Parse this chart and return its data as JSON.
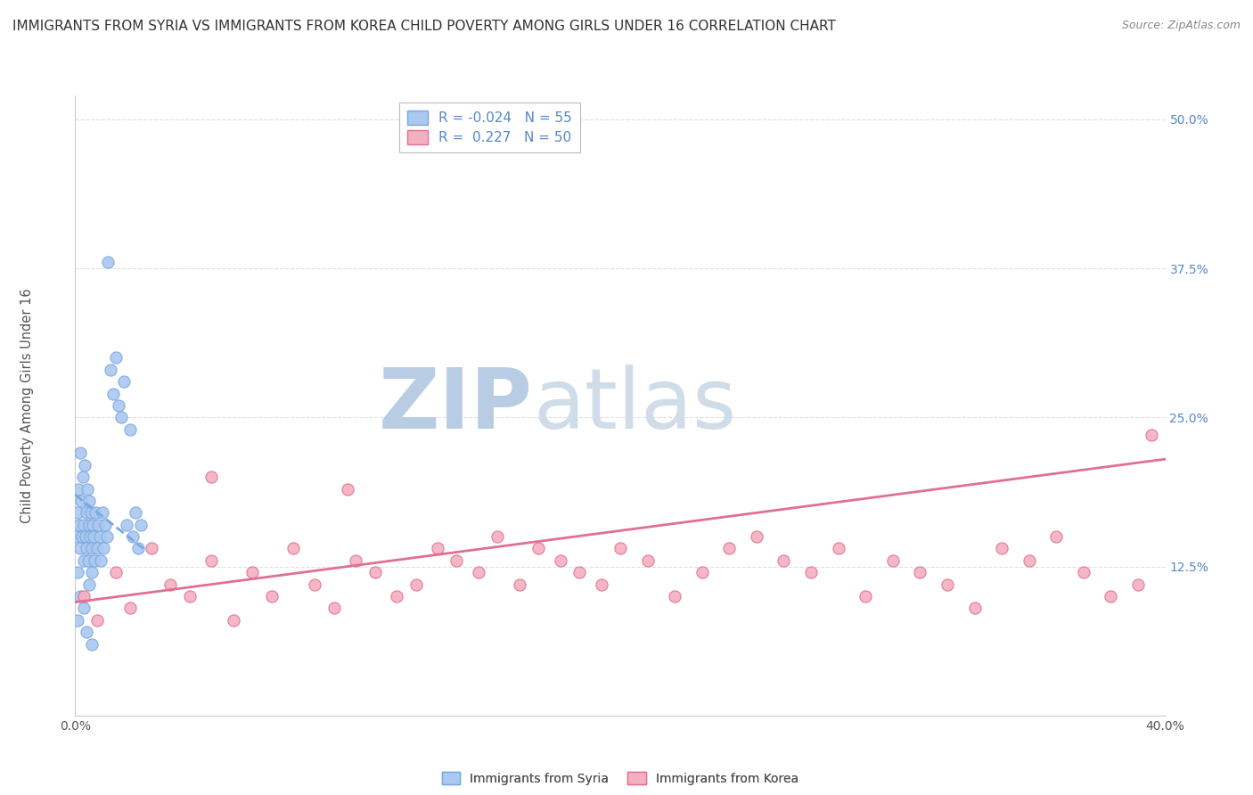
{
  "title": "IMMIGRANTS FROM SYRIA VS IMMIGRANTS FROM KOREA CHILD POVERTY AMONG GIRLS UNDER 16 CORRELATION CHART",
  "source": "Source: ZipAtlas.com",
  "ylabel": "Child Poverty Among Girls Under 16",
  "xlim": [
    0.0,
    40.0
  ],
  "ylim": [
    0.0,
    0.52
  ],
  "x_ticks": [
    0,
    10,
    20,
    30,
    40
  ],
  "x_tick_labels": [
    "0.0%",
    "",
    "",
    "",
    "40.0%"
  ],
  "y_ticks": [
    0.0,
    0.125,
    0.25,
    0.375,
    0.5
  ],
  "y_tick_labels": [
    "",
    "12.5%",
    "25.0%",
    "37.5%",
    "50.0%"
  ],
  "series": [
    {
      "name": "Immigrants from Syria",
      "color": "#aac8f0",
      "edge_color": "#78a8e0",
      "R": -0.024,
      "N": 55,
      "trend_color": "#78a8e0",
      "trend_style": "dashed",
      "trend_x_start": 0.0,
      "trend_x_end": 2.5,
      "trend_y_start": 0.185,
      "trend_y_end": 0.14,
      "x": [
        0.05,
        0.08,
        0.1,
        0.12,
        0.15,
        0.18,
        0.2,
        0.22,
        0.25,
        0.28,
        0.3,
        0.33,
        0.35,
        0.38,
        0.4,
        0.42,
        0.45,
        0.48,
        0.5,
        0.52,
        0.55,
        0.58,
        0.6,
        0.62,
        0.65,
        0.68,
        0.7,
        0.75,
        0.8,
        0.85,
        0.9,
        0.95,
        1.0,
        1.05,
        1.1,
        1.15,
        1.2,
        1.3,
        1.4,
        1.5,
        1.6,
        1.7,
        1.8,
        1.9,
        2.0,
        2.1,
        2.2,
        2.3,
        2.4,
        0.1,
        0.2,
        0.3,
        0.4,
        0.5,
        0.6
      ],
      "y": [
        0.15,
        0.17,
        0.12,
        0.19,
        0.16,
        0.22,
        0.14,
        0.18,
        0.15,
        0.2,
        0.13,
        0.16,
        0.21,
        0.15,
        0.17,
        0.14,
        0.19,
        0.13,
        0.16,
        0.18,
        0.15,
        0.17,
        0.14,
        0.12,
        0.16,
        0.15,
        0.13,
        0.17,
        0.14,
        0.16,
        0.15,
        0.13,
        0.17,
        0.14,
        0.16,
        0.15,
        0.38,
        0.29,
        0.27,
        0.3,
        0.26,
        0.25,
        0.28,
        0.16,
        0.24,
        0.15,
        0.17,
        0.14,
        0.16,
        0.08,
        0.1,
        0.09,
        0.07,
        0.11,
        0.06
      ]
    },
    {
      "name": "Immigrants from Korea",
      "color": "#f4b0c0",
      "edge_color": "#e07090",
      "R": 0.227,
      "N": 50,
      "trend_color": "#e07090",
      "trend_style": "solid",
      "trend_x_start": 0.0,
      "trend_x_end": 40.0,
      "trend_y_start": 0.095,
      "trend_y_end": 0.215,
      "x": [
        0.3,
        0.8,
        1.5,
        2.0,
        2.8,
        3.5,
        4.2,
        5.0,
        5.8,
        6.5,
        7.2,
        8.0,
        8.8,
        9.5,
        10.3,
        11.0,
        11.8,
        12.5,
        13.3,
        14.0,
        14.8,
        15.5,
        16.3,
        17.0,
        17.8,
        18.5,
        19.3,
        20.0,
        21.0,
        22.0,
        23.0,
        24.0,
        25.0,
        26.0,
        27.0,
        28.0,
        29.0,
        30.0,
        31.0,
        32.0,
        33.0,
        34.0,
        35.0,
        36.0,
        37.0,
        38.0,
        39.0,
        5.0,
        10.0,
        39.5
      ],
      "y": [
        0.1,
        0.08,
        0.12,
        0.09,
        0.14,
        0.11,
        0.1,
        0.13,
        0.08,
        0.12,
        0.1,
        0.14,
        0.11,
        0.09,
        0.13,
        0.12,
        0.1,
        0.11,
        0.14,
        0.13,
        0.12,
        0.15,
        0.11,
        0.14,
        0.13,
        0.12,
        0.11,
        0.14,
        0.13,
        0.1,
        0.12,
        0.14,
        0.15,
        0.13,
        0.12,
        0.14,
        0.1,
        0.13,
        0.12,
        0.11,
        0.09,
        0.14,
        0.13,
        0.15,
        0.12,
        0.1,
        0.11,
        0.2,
        0.19,
        0.235
      ]
    }
  ],
  "watermark_zip": "ZIP",
  "watermark_atlas": "atlas",
  "watermark_color": "#c8d8ec",
  "background_color": "#ffffff",
  "grid_color": "#e0e0e0",
  "title_fontsize": 11,
  "axis_label_fontsize": 10.5,
  "tick_fontsize": 10,
  "legend_fontsize": 11,
  "source_fontsize": 9,
  "tick_color": "#5588cc",
  "spine_color": "#cccccc"
}
